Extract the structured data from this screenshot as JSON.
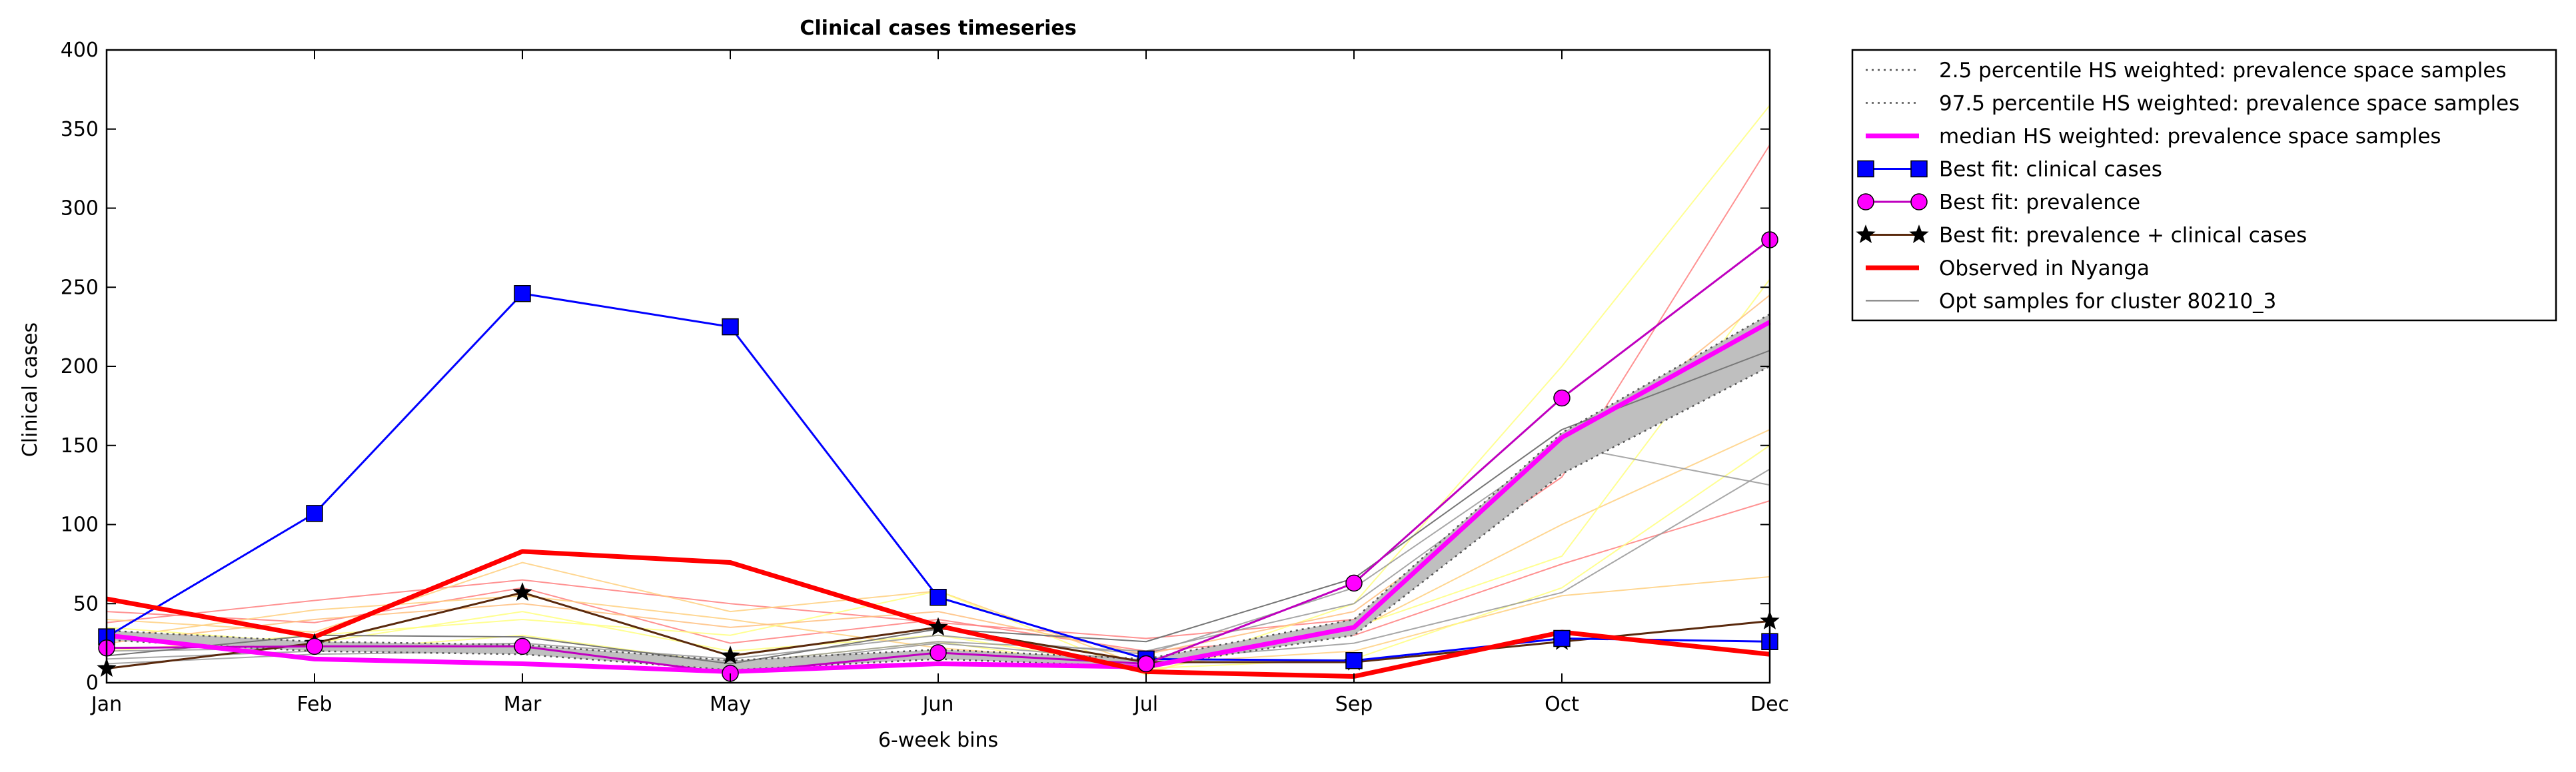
{
  "chart_data": {
    "type": "line",
    "title": "Clinical cases timeseries",
    "xlabel": "6-week bins",
    "ylabel": "Clinical cases",
    "categories": [
      "Jan",
      "Feb",
      "Mar",
      "May",
      "Jun",
      "Jul",
      "Sep",
      "Oct",
      "Dec"
    ],
    "ylim": [
      0,
      400
    ],
    "yticks": [
      0,
      50,
      100,
      150,
      200,
      250,
      300,
      350,
      400
    ],
    "grid": false,
    "legend_position": "outside top-right",
    "band": {
      "lower": [
        27,
        20,
        18,
        8,
        15,
        10,
        30,
        132,
        200
      ],
      "upper": [
        33,
        26,
        24,
        14,
        21,
        15,
        40,
        158,
        233
      ],
      "color": "#bfbfbf"
    },
    "series": [
      {
        "name": "2.5 percentile HS weighted: prevalence space samples",
        "style": "dotted",
        "color": "#555555",
        "values": [
          27,
          20,
          18,
          8,
          15,
          10,
          30,
          132,
          200
        ]
      },
      {
        "name": "97.5 percentile HS weighted: prevalence space samples",
        "style": "dotted",
        "color": "#555555",
        "values": [
          33,
          26,
          24,
          14,
          21,
          15,
          40,
          158,
          233
        ]
      },
      {
        "name": "median HS weighted: prevalence space samples",
        "style": "thick",
        "color": "#ff00ff",
        "values": [
          30,
          15,
          12,
          7,
          12,
          10,
          35,
          155,
          228
        ]
      },
      {
        "name": "Best fit: clinical cases",
        "style": "square",
        "color": "#0000ff",
        "values": [
          29,
          107,
          246,
          225,
          54,
          15,
          14,
          28,
          26
        ]
      },
      {
        "name": "Best fit: prevalence",
        "style": "circle",
        "color": "#bf00bf",
        "values": [
          22,
          23,
          23,
          6,
          19,
          12,
          63,
          180,
          280
        ]
      },
      {
        "name": "Best fit: prevalence + clinical cases",
        "style": "star",
        "color": "#5a2a0e",
        "values": [
          9,
          25,
          57,
          17,
          35,
          13,
          13,
          26,
          39
        ]
      },
      {
        "name": "Observed in Nyanga",
        "style": "observed",
        "color": "#ff0000",
        "values": [
          53,
          29,
          83,
          76,
          36,
          7,
          4,
          32,
          18
        ]
      },
      {
        "name": "Opt samples for cluster 80210_3",
        "style": "thin",
        "color": "#777777",
        "values": [
          17,
          30,
          29,
          12,
          34,
          26,
          66,
          160,
          210
        ]
      }
    ],
    "background_samples": [
      {
        "color": "#ff8080",
        "values": [
          38,
          52,
          65,
          50,
          38,
          28,
          40,
          130,
          340
        ]
      },
      {
        "color": "#ff8080",
        "values": [
          45,
          38,
          60,
          25,
          40,
          20,
          30,
          75,
          115
        ]
      },
      {
        "color": "#ffd080",
        "values": [
          40,
          32,
          76,
          45,
          58,
          10,
          33,
          100,
          160
        ]
      },
      {
        "color": "#ffd080",
        "values": [
          28,
          46,
          55,
          40,
          22,
          12,
          20,
          55,
          67
        ]
      },
      {
        "color": "#ffff80",
        "values": [
          20,
          30,
          40,
          30,
          58,
          5,
          50,
          200,
          365
        ]
      },
      {
        "color": "#ffff80",
        "values": [
          33,
          20,
          30,
          12,
          26,
          7,
          35,
          80,
          255
        ]
      },
      {
        "color": "#ffff80",
        "values": [
          35,
          25,
          45,
          20,
          30,
          9,
          15,
          60,
          150
        ]
      },
      {
        "color": "#ffc080",
        "values": [
          25,
          40,
          50,
          35,
          45,
          18,
          45,
          140,
          245
        ]
      },
      {
        "color": "#999999",
        "values": [
          12,
          18,
          20,
          10,
          25,
          14,
          25,
          57,
          135
        ]
      },
      {
        "color": "#999999",
        "values": [
          20,
          22,
          25,
          15,
          30,
          18,
          60,
          150,
          125
        ]
      },
      {
        "color": "#999999",
        "values": [
          15,
          20,
          22,
          12,
          26,
          20,
          50,
          145,
          215
        ]
      }
    ]
  }
}
